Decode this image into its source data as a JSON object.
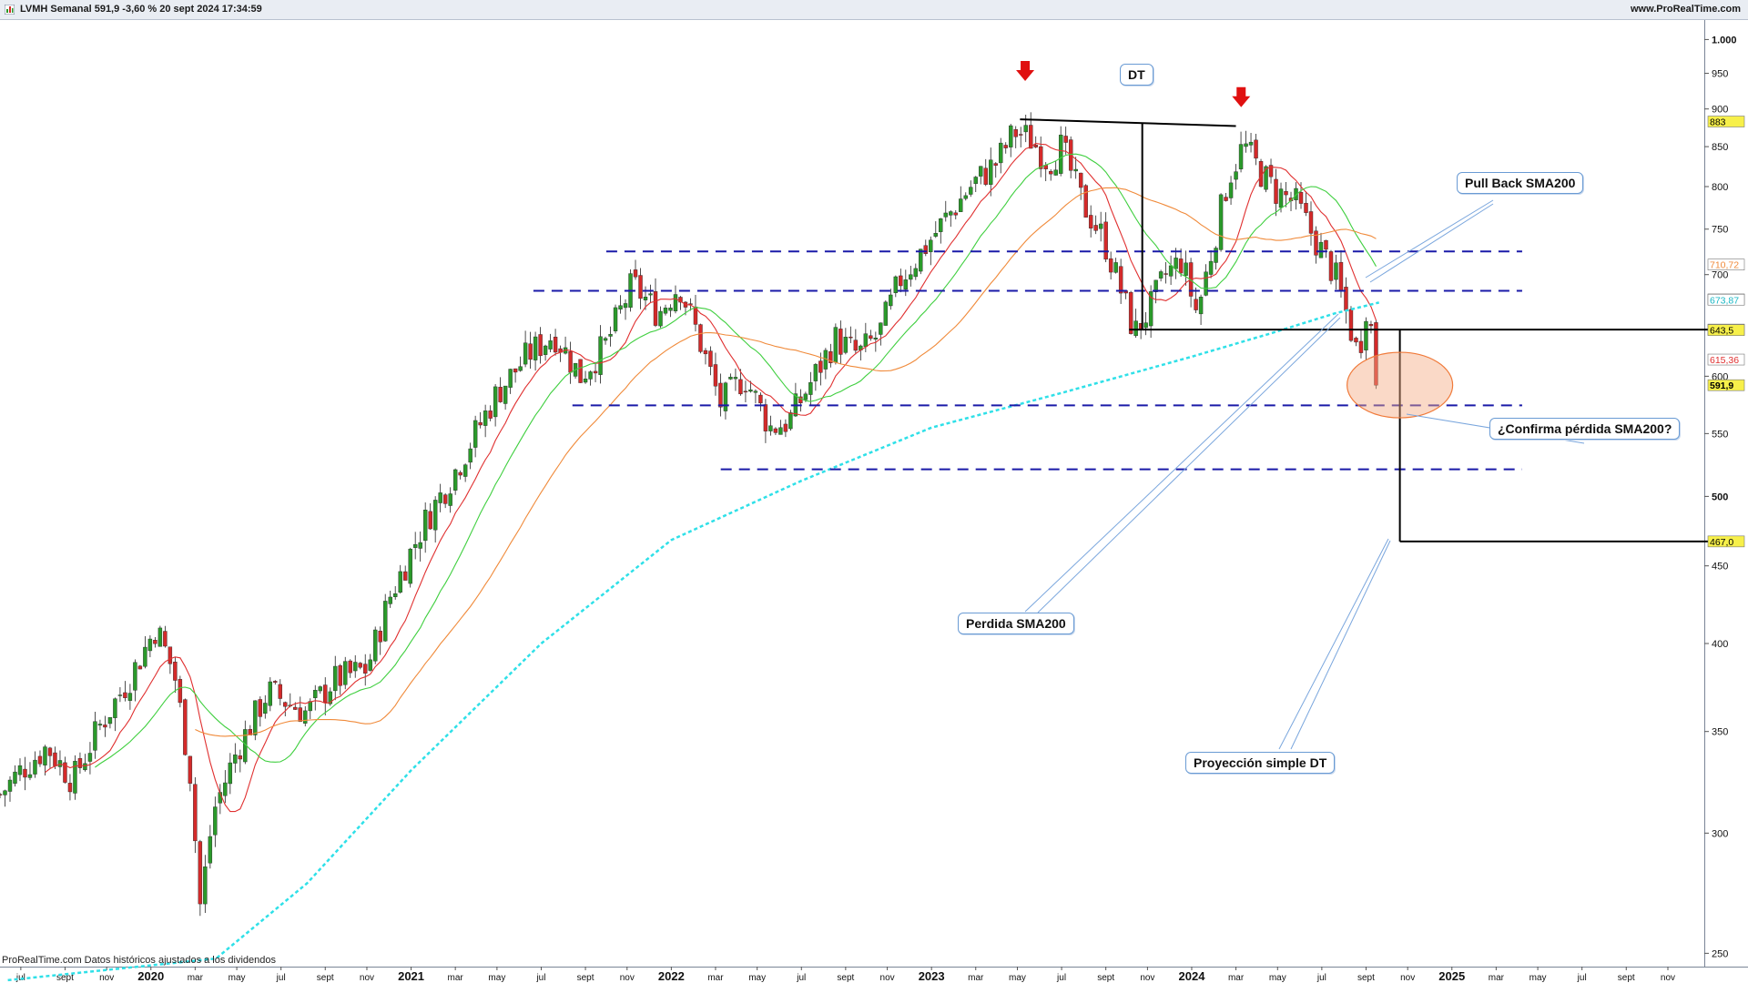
{
  "window": {
    "title": "LVMH Semanal 591,9 -3,60 % 20 sept 2024 17:34:59",
    "site": "www.ProRealTime.com",
    "footer": "ProRealTime.com  Datos históricos ajustados a los dividendos"
  },
  "colors": {
    "up": "#2a9a2a",
    "down": "#d42a2a",
    "sma_fast": "#e03030",
    "sma_mid": "#3fcf3f",
    "sma_slow": "#f08a3a",
    "sma200": "#2fe0e8",
    "levels": "#1a1aa8",
    "arrow": "#e01010",
    "pattern": "#000000"
  },
  "chart_data": {
    "type": "candlestick",
    "scale": "log",
    "ylim": [
      245,
      1030
    ],
    "xlim": [
      2019.42,
      2025.97
    ],
    "y_ticks": [
      {
        "v": 1000,
        "label": "1.000",
        "bold": true
      },
      {
        "v": 950,
        "label": "950"
      },
      {
        "v": 900,
        "label": "900"
      },
      {
        "v": 850,
        "label": "850"
      },
      {
        "v": 800,
        "label": "800"
      },
      {
        "v": 750,
        "label": "750"
      },
      {
        "v": 700,
        "label": "700"
      },
      {
        "v": 600,
        "label": "600"
      },
      {
        "v": 550,
        "label": "550"
      },
      {
        "v": 500,
        "label": "500",
        "bold": true
      },
      {
        "v": 450,
        "label": "450"
      },
      {
        "v": 400,
        "label": "400"
      },
      {
        "v": 350,
        "label": "350"
      },
      {
        "v": 300,
        "label": "300"
      },
      {
        "v": 250,
        "label": "250"
      }
    ],
    "x_ticks": [
      {
        "t": 2019.5,
        "label": "jul"
      },
      {
        "t": 2019.67,
        "label": "sept"
      },
      {
        "t": 2019.83,
        "label": "nov"
      },
      {
        "t": 2020.0,
        "label": "2020",
        "bold": true
      },
      {
        "t": 2020.17,
        "label": "mar"
      },
      {
        "t": 2020.33,
        "label": "may"
      },
      {
        "t": 2020.5,
        "label": "jul"
      },
      {
        "t": 2020.67,
        "label": "sept"
      },
      {
        "t": 2020.83,
        "label": "nov"
      },
      {
        "t": 2021.0,
        "label": "2021",
        "bold": true
      },
      {
        "t": 2021.17,
        "label": "mar"
      },
      {
        "t": 2021.33,
        "label": "may"
      },
      {
        "t": 2021.5,
        "label": "jul"
      },
      {
        "t": 2021.67,
        "label": "sept"
      },
      {
        "t": 2021.83,
        "label": "nov"
      },
      {
        "t": 2022.0,
        "label": "2022",
        "bold": true
      },
      {
        "t": 2022.17,
        "label": "mar"
      },
      {
        "t": 2022.33,
        "label": "may"
      },
      {
        "t": 2022.5,
        "label": "jul"
      },
      {
        "t": 2022.67,
        "label": "sept"
      },
      {
        "t": 2022.83,
        "label": "nov"
      },
      {
        "t": 2023.0,
        "label": "2023",
        "bold": true
      },
      {
        "t": 2023.17,
        "label": "mar"
      },
      {
        "t": 2023.33,
        "label": "may"
      },
      {
        "t": 2023.5,
        "label": "jul"
      },
      {
        "t": 2023.67,
        "label": "sept"
      },
      {
        "t": 2023.83,
        "label": "nov"
      },
      {
        "t": 2024.0,
        "label": "2024",
        "bold": true
      },
      {
        "t": 2024.17,
        "label": "mar"
      },
      {
        "t": 2024.33,
        "label": "may"
      },
      {
        "t": 2024.5,
        "label": "jul"
      },
      {
        "t": 2024.67,
        "label": "sept"
      },
      {
        "t": 2024.83,
        "label": "nov"
      },
      {
        "t": 2025.0,
        "label": "2025",
        "bold": true
      },
      {
        "t": 2025.17,
        "label": "mar"
      },
      {
        "t": 2025.33,
        "label": "may"
      },
      {
        "t": 2025.5,
        "label": "jul"
      },
      {
        "t": 2025.67,
        "label": "sept"
      },
      {
        "t": 2025.83,
        "label": "nov"
      }
    ],
    "price_path": [
      [
        2019.42,
        318
      ],
      [
        2019.5,
        330
      ],
      [
        2019.6,
        342
      ],
      [
        2019.7,
        325
      ],
      [
        2019.8,
        352
      ],
      [
        2019.92,
        380
      ],
      [
        2020.02,
        410
      ],
      [
        2020.09,
        382
      ],
      [
        2020.15,
        330
      ],
      [
        2020.19,
        268
      ],
      [
        2020.24,
        310
      ],
      [
        2020.33,
        340
      ],
      [
        2020.45,
        372
      ],
      [
        2020.6,
        360
      ],
      [
        2020.7,
        378
      ],
      [
        2020.83,
        385
      ],
      [
        2020.92,
        430
      ],
      [
        2021.05,
        480
      ],
      [
        2021.17,
        520
      ],
      [
        2021.33,
        585
      ],
      [
        2021.45,
        620
      ],
      [
        2021.55,
        640
      ],
      [
        2021.65,
        600
      ],
      [
        2021.75,
        630
      ],
      [
        2021.85,
        690
      ],
      [
        2021.95,
        660
      ],
      [
        2022.03,
        690
      ],
      [
        2022.1,
        640
      ],
      [
        2022.19,
        575
      ],
      [
        2022.28,
        600
      ],
      [
        2022.38,
        555
      ],
      [
        2022.45,
        560
      ],
      [
        2022.55,
        600
      ],
      [
        2022.63,
        635
      ],
      [
        2022.72,
        620
      ],
      [
        2022.8,
        640
      ],
      [
        2022.88,
        695
      ],
      [
        2022.95,
        720
      ],
      [
        2023.05,
        760
      ],
      [
        2023.15,
        800
      ],
      [
        2023.25,
        830
      ],
      [
        2023.32,
        870
      ],
      [
        2023.38,
        860
      ],
      [
        2023.45,
        830
      ],
      [
        2023.5,
        850
      ],
      [
        2023.58,
        780
      ],
      [
        2023.66,
        740
      ],
      [
        2023.72,
        690
      ],
      [
        2023.78,
        640
      ],
      [
        2023.84,
        665
      ],
      [
        2023.9,
        700
      ],
      [
        2023.96,
        715
      ],
      [
        2024.02,
        660
      ],
      [
        2024.08,
        730
      ],
      [
        2024.14,
        810
      ],
      [
        2024.2,
        852
      ],
      [
        2024.26,
        820
      ],
      [
        2024.32,
        795
      ],
      [
        2024.4,
        780
      ],
      [
        2024.48,
        735
      ],
      [
        2024.55,
        700
      ],
      [
        2024.6,
        655
      ],
      [
        2024.64,
        618
      ],
      [
        2024.67,
        668
      ],
      [
        2024.7,
        632
      ],
      [
        2024.72,
        591.9
      ]
    ],
    "last": {
      "date": "20 sept 2024",
      "close": 591.9,
      "change_pct": -3.6
    },
    "moving_averages": [
      {
        "period": 10,
        "color_key": "sma_fast"
      },
      {
        "period": 20,
        "color_key": "sma_mid"
      },
      {
        "period": 40,
        "color_key": "sma_slow"
      },
      {
        "period": 200,
        "color_key": "sma200",
        "seed": [
          [
            2019.45,
            240
          ],
          [
            2020.25,
            248
          ],
          [
            2020.6,
            278
          ],
          [
            2021.0,
            330
          ],
          [
            2021.5,
            400
          ],
          [
            2022.0,
            468
          ],
          [
            2022.5,
            512
          ],
          [
            2023.0,
            555
          ],
          [
            2023.5,
            585
          ],
          [
            2024.0,
            618
          ],
          [
            2024.3,
            640
          ],
          [
            2024.55,
            660
          ],
          [
            2024.72,
            671
          ]
        ]
      }
    ],
    "price_labels": [
      {
        "v": 883,
        "text": "883",
        "bg": "#f7f04a",
        "fg": "#000000"
      },
      {
        "v": 710.72,
        "text": "710,72",
        "bg": "#ffffff",
        "fg": "#f08a3a"
      },
      {
        "v": 674.18,
        "text": "674,18",
        "bg": "#ffffff",
        "fg": "#2ca02c"
      },
      {
        "v": 673.87,
        "text": "673,87",
        "bg": "#ffffff",
        "fg": "#19b7c4"
      },
      {
        "v": 644.0,
        "text": "644,0",
        "bg": "#f7f04a",
        "fg": "#000000"
      },
      {
        "v": 643.5,
        "text": "643,5",
        "bg": "#f7f04a",
        "fg": "#000000"
      },
      {
        "v": 615.36,
        "text": "615,36",
        "bg": "#ffffff",
        "fg": "#e03030"
      },
      {
        "v": 591.9,
        "text": "591,9",
        "bg": "#f7f04a",
        "fg": "#000000",
        "bold": true
      },
      {
        "v": 467.0,
        "text": "467,0",
        "bg": "#f7f04a",
        "fg": "#000000"
      }
    ],
    "dashed_levels": [
      {
        "v": 725,
        "t0": 2021.75,
        "t1": 2025.27
      },
      {
        "v": 683,
        "t0": 2021.47,
        "t1": 2025.27
      },
      {
        "v": 574,
        "t0": 2021.62,
        "t1": 2025.27
      },
      {
        "v": 521,
        "t0": 2022.19,
        "t1": 2025.27
      }
    ],
    "double_top": {
      "label": "DT",
      "top_line": [
        [
          2023.34,
          886
        ],
        [
          2024.17,
          877
        ]
      ],
      "neckline": {
        "v": 644,
        "t0": 2023.76,
        "t1": 2026.0
      },
      "height_line": {
        "t": 2023.81,
        "v0": 644,
        "v1": 880
      },
      "projection_line": {
        "t": 2024.8,
        "v0": 644,
        "v1": 467
      },
      "target": {
        "v": 467,
        "t0": 2024.8,
        "t1": 2026.0
      }
    },
    "arrows": [
      {
        "t": 2023.36,
        "v": 952
      },
      {
        "t": 2024.19,
        "v": 915
      }
    ],
    "ellipse": {
      "t": 2024.8,
      "v": 592,
      "rx": 58,
      "ry": 36
    },
    "annotations": [
      {
        "id": "pullback",
        "text": "Pull Back SMA200"
      },
      {
        "id": "perdida",
        "text": "Perdida SMA200"
      },
      {
        "id": "confirma",
        "text": "¿Confirma pérdida SMA200?"
      },
      {
        "id": "proyeccion",
        "text": "Proyección simple  DT"
      }
    ]
  }
}
